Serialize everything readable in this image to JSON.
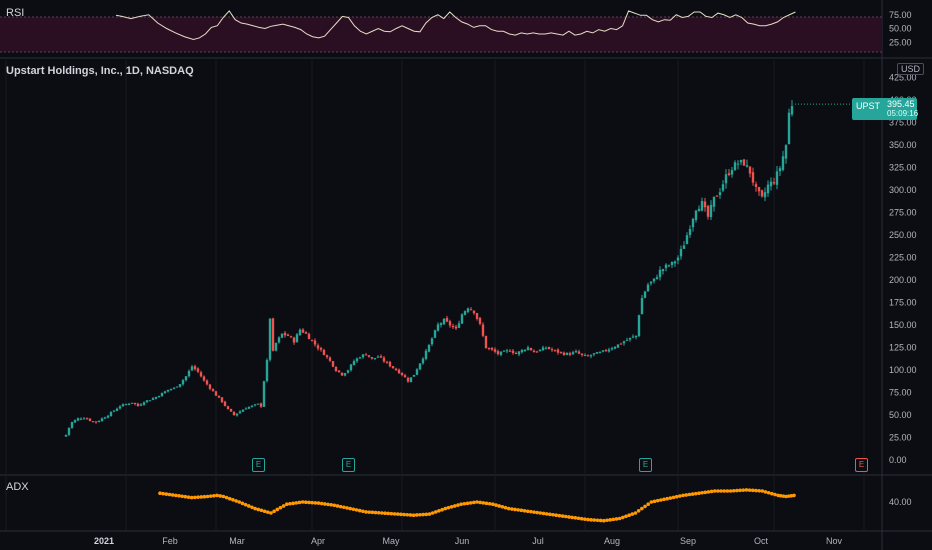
{
  "chart_data": [
    {
      "type": "line",
      "pane": "rsi",
      "title": "RSI",
      "y_ticks": [
        "75.00",
        "50.00",
        "25.00"
      ],
      "band": [
        30,
        70
      ],
      "points": [
        [
          0,
          74
        ],
        [
          2,
          72
        ],
        [
          5,
          68
        ],
        [
          8,
          72
        ],
        [
          11,
          75
        ],
        [
          14,
          60
        ],
        [
          17,
          50
        ],
        [
          20,
          42
        ],
        [
          23,
          35
        ],
        [
          26,
          30
        ],
        [
          28,
          33
        ],
        [
          30,
          40
        ],
        [
          32,
          52
        ],
        [
          34,
          55
        ],
        [
          36,
          70
        ],
        [
          38,
          82
        ],
        [
          39,
          74
        ],
        [
          40,
          66
        ],
        [
          42,
          60
        ],
        [
          44,
          58
        ],
        [
          46,
          55
        ],
        [
          48,
          52
        ],
        [
          50,
          50
        ],
        [
          52,
          54
        ],
        [
          54,
          56
        ],
        [
          56,
          58
        ],
        [
          58,
          55
        ],
        [
          60,
          52
        ],
        [
          62,
          48
        ],
        [
          64,
          40
        ],
        [
          66,
          35
        ],
        [
          68,
          33
        ],
        [
          70,
          36
        ],
        [
          72,
          48
        ],
        [
          74,
          60
        ],
        [
          76,
          72
        ],
        [
          78,
          70
        ],
        [
          80,
          55
        ],
        [
          82,
          45
        ],
        [
          84,
          40
        ],
        [
          86,
          45
        ],
        [
          88,
          50
        ],
        [
          90,
          45
        ],
        [
          92,
          44
        ],
        [
          94,
          50
        ],
        [
          96,
          55
        ],
        [
          98,
          50
        ],
        [
          100,
          45
        ],
        [
          102,
          44
        ],
        [
          104,
          60
        ],
        [
          106,
          70
        ],
        [
          108,
          75
        ],
        [
          110,
          68
        ],
        [
          112,
          80
        ],
        [
          114,
          70
        ],
        [
          116,
          62
        ],
        [
          118,
          58
        ],
        [
          120,
          52
        ],
        [
          122,
          55
        ],
        [
          124,
          55
        ],
        [
          126,
          48
        ],
        [
          128,
          45
        ],
        [
          130,
          45
        ],
        [
          132,
          40
        ],
        [
          134,
          38
        ],
        [
          136,
          42
        ],
        [
          138,
          40
        ],
        [
          140,
          42
        ],
        [
          142,
          40
        ],
        [
          144,
          40
        ],
        [
          146,
          42
        ],
        [
          148,
          40
        ],
        [
          150,
          38
        ],
        [
          152,
          45
        ],
        [
          154,
          38
        ],
        [
          156,
          40
        ],
        [
          158,
          45
        ],
        [
          160,
          42
        ],
        [
          162,
          48
        ],
        [
          164,
          45
        ],
        [
          166,
          50
        ],
        [
          168,
          48
        ],
        [
          170,
          55
        ],
        [
          172,
          82
        ],
        [
          174,
          78
        ],
        [
          176,
          74
        ],
        [
          178,
          74
        ],
        [
          180,
          66
        ],
        [
          182,
          62
        ],
        [
          184,
          66
        ],
        [
          186,
          65
        ],
        [
          188,
          75
        ],
        [
          190,
          70
        ],
        [
          192,
          72
        ],
        [
          194,
          80
        ],
        [
          196,
          80
        ],
        [
          198,
          72
        ],
        [
          200,
          70
        ],
        [
          202,
          78
        ],
        [
          204,
          75
        ],
        [
          206,
          70
        ],
        [
          208,
          75
        ],
        [
          210,
          70
        ],
        [
          212,
          60
        ],
        [
          214,
          58
        ],
        [
          216,
          55
        ],
        [
          218,
          55
        ],
        [
          220,
          58
        ],
        [
          222,
          62
        ],
        [
          224,
          70
        ],
        [
          226,
          75
        ],
        [
          228,
          80
        ]
      ]
    },
    {
      "type": "candlestick",
      "pane": "price",
      "title": "Upstart Holdings, Inc., 1D, NASDAQ",
      "currency": "USD",
      "symbol": "UPST",
      "last_price": "395.45",
      "countdown": "05:09:16",
      "y_ticks": [
        "425.00",
        "400.00",
        "375.00",
        "350.00",
        "325.00",
        "300.00",
        "275.00",
        "250.00",
        "225.00",
        "200.00",
        "175.00",
        "150.00",
        "125.00",
        "100.00",
        "75.00",
        "50.00",
        "25.00",
        "0.00"
      ],
      "ylim": [
        0,
        425
      ],
      "anchors": [
        [
          0,
          28
        ],
        [
          1,
          36
        ],
        [
          2,
          42
        ],
        [
          4,
          46
        ],
        [
          6,
          47
        ],
        [
          8,
          44
        ],
        [
          10,
          42
        ],
        [
          12,
          46
        ],
        [
          14,
          50
        ],
        [
          16,
          55
        ],
        [
          18,
          60
        ],
        [
          20,
          62
        ],
        [
          22,
          64
        ],
        [
          24,
          60
        ],
        [
          26,
          65
        ],
        [
          28,
          67
        ],
        [
          30,
          70
        ],
        [
          32,
          74
        ],
        [
          34,
          78
        ],
        [
          36,
          80
        ],
        [
          38,
          85
        ],
        [
          40,
          93
        ],
        [
          42,
          104
        ],
        [
          44,
          98
        ],
        [
          46,
          88
        ],
        [
          48,
          80
        ],
        [
          50,
          72
        ],
        [
          52,
          65
        ],
        [
          54,
          56
        ],
        [
          56,
          50
        ],
        [
          58,
          54
        ],
        [
          60,
          58
        ],
        [
          62,
          60
        ],
        [
          64,
          62
        ],
        [
          65,
          60
        ],
        [
          66,
          88
        ],
        [
          67,
          110
        ],
        [
          68,
          158
        ],
        [
          69,
          120
        ],
        [
          70,
          130
        ],
        [
          72,
          140
        ],
        [
          74,
          138
        ],
        [
          76,
          132
        ],
        [
          78,
          145
        ],
        [
          80,
          140
        ],
        [
          82,
          132
        ],
        [
          84,
          125
        ],
        [
          86,
          118
        ],
        [
          88,
          110
        ],
        [
          90,
          100
        ],
        [
          92,
          95
        ],
        [
          94,
          100
        ],
        [
          96,
          110
        ],
        [
          98,
          115
        ],
        [
          100,
          118
        ],
        [
          102,
          112
        ],
        [
          104,
          115
        ],
        [
          106,
          110
        ],
        [
          108,
          105
        ],
        [
          110,
          100
        ],
        [
          112,
          95
        ],
        [
          114,
          88
        ],
        [
          116,
          95
        ],
        [
          118,
          108
        ],
        [
          120,
          120
        ],
        [
          122,
          135
        ],
        [
          124,
          150
        ],
        [
          126,
          155
        ],
        [
          128,
          150
        ],
        [
          130,
          145
        ],
        [
          132,
          162
        ],
        [
          134,
          170
        ],
        [
          136,
          165
        ],
        [
          138,
          150
        ],
        [
          140,
          125
        ],
        [
          142,
          122
        ],
        [
          144,
          118
        ],
        [
          146,
          120
        ],
        [
          148,
          122
        ],
        [
          150,
          118
        ],
        [
          152,
          122
        ],
        [
          154,
          125
        ],
        [
          156,
          120
        ],
        [
          158,
          122
        ],
        [
          160,
          125
        ],
        [
          162,
          122
        ],
        [
          164,
          120
        ],
        [
          166,
          118
        ],
        [
          168,
          118
        ],
        [
          170,
          120
        ],
        [
          172,
          116
        ],
        [
          174,
          115
        ],
        [
          176,
          118
        ],
        [
          178,
          119
        ],
        [
          180,
          122
        ],
        [
          182,
          125
        ],
        [
          184,
          128
        ],
        [
          186,
          132
        ],
        [
          188,
          135
        ],
        [
          190,
          138
        ],
        [
          191,
          162
        ],
        [
          192,
          180
        ],
        [
          194,
          195
        ],
        [
          196,
          200
        ],
        [
          198,
          210
        ],
        [
          200,
          215
        ],
        [
          202,
          218
        ],
        [
          204,
          225
        ],
        [
          206,
          240
        ],
        [
          208,
          260
        ],
        [
          210,
          280
        ],
        [
          212,
          285
        ],
        [
          214,
          270
        ],
        [
          216,
          290
        ],
        [
          218,
          300
        ],
        [
          220,
          315
        ],
        [
          222,
          325
        ],
        [
          224,
          330
        ],
        [
          226,
          330
        ],
        [
          228,
          320
        ],
        [
          230,
          300
        ],
        [
          232,
          290
        ],
        [
          234,
          305
        ],
        [
          236,
          310
        ],
        [
          238,
          325
        ],
        [
          240,
          350
        ],
        [
          241,
          385
        ],
        [
          242,
          395.45
        ]
      ],
      "earnings_markers": [
        {
          "t": 64,
          "label": "E",
          "color": "green"
        },
        {
          "t": 94,
          "label": "E",
          "color": "green"
        },
        {
          "t": 193,
          "label": "E",
          "color": "green"
        },
        {
          "t": 265,
          "label": "E",
          "color": "red"
        }
      ]
    },
    {
      "type": "line",
      "pane": "adx",
      "title": "ADX",
      "y_ticks": [
        "40.00"
      ],
      "points": [
        [
          0,
          48
        ],
        [
          10,
          46
        ],
        [
          20,
          44
        ],
        [
          30,
          45
        ],
        [
          36,
          46
        ],
        [
          40,
          45
        ],
        [
          50,
          40
        ],
        [
          60,
          34
        ],
        [
          70,
          30
        ],
        [
          80,
          38
        ],
        [
          90,
          40
        ],
        [
          100,
          39
        ],
        [
          110,
          37
        ],
        [
          120,
          34
        ],
        [
          130,
          31
        ],
        [
          140,
          30
        ],
        [
          150,
          29
        ],
        [
          160,
          28
        ],
        [
          170,
          29
        ],
        [
          180,
          34
        ],
        [
          190,
          38
        ],
        [
          200,
          40
        ],
        [
          210,
          38
        ],
        [
          220,
          34
        ],
        [
          230,
          32
        ],
        [
          240,
          30
        ],
        [
          250,
          28
        ],
        [
          260,
          26
        ],
        [
          270,
          24
        ],
        [
          280,
          23
        ],
        [
          290,
          25
        ],
        [
          300,
          30
        ],
        [
          310,
          40
        ],
        [
          320,
          43
        ],
        [
          330,
          46
        ],
        [
          340,
          48
        ],
        [
          350,
          50
        ],
        [
          360,
          50
        ],
        [
          370,
          51
        ],
        [
          380,
          50
        ],
        [
          390,
          46
        ],
        [
          395,
          45
        ],
        [
          400,
          46
        ]
      ]
    }
  ],
  "x_axis": {
    "labels": [
      {
        "t": -20,
        "text": "2021",
        "bold": true
      },
      {
        "t": 20,
        "text": "Feb"
      },
      {
        "t": 50,
        "text": "Mar"
      },
      {
        "t": 82,
        "text": "Apr"
      },
      {
        "t": 112,
        "text": "May"
      },
      {
        "t": 143,
        "text": "Jun"
      },
      {
        "t": 173,
        "text": "Jul"
      },
      {
        "t": 204,
        "text": "Aug"
      },
      {
        "t": 236,
        "text": "Sep"
      },
      {
        "t": 266,
        "text": "Oct"
      },
      {
        "t": 297,
        "text": "Nov"
      }
    ]
  },
  "colors": {
    "up": "#26a69a",
    "down": "#ef5350",
    "rsi_line": "#e6ddc6",
    "rsi_band": "#2a0f22",
    "adx_line": "#ff9800",
    "grid": "#181b22",
    "axis_text": "#b2b5be",
    "background": "#0b0d12"
  }
}
